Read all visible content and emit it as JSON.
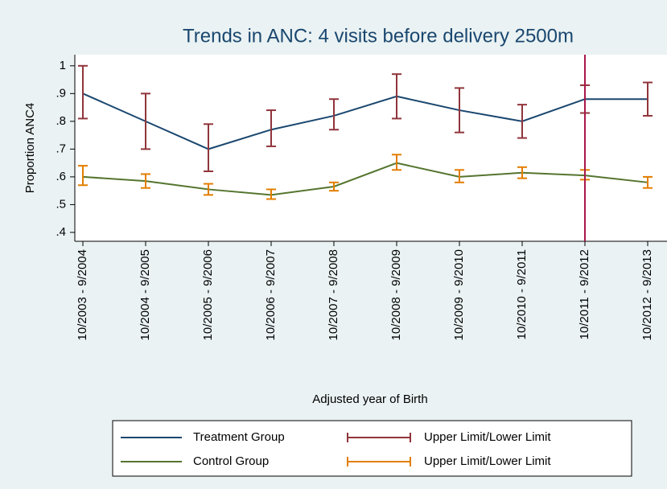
{
  "chart_data": {
    "type": "line",
    "title": "Trends in ANC: 4 visits before delivery 2500m",
    "x_label": "Adjusted year of Birth",
    "y_label": "Proportion ANC4",
    "categories": [
      "10/2003 - 9/2004",
      "10/2004 - 9/2005",
      "10/2005 - 9/2006",
      "10/2006 - 9/2007",
      "10/2007 - 9/2008",
      "10/2008 - 9/2009",
      "10/2009 - 9/2010",
      "10/2010 - 9/2011",
      "10/2011 - 9/2012",
      "10/2012 - 9/2013"
    ],
    "series": [
      {
        "name": "Treatment Group",
        "color": "#1a476f",
        "values": [
          0.9,
          0.8,
          0.7,
          0.77,
          0.82,
          0.89,
          0.84,
          0.8,
          0.88,
          0.88
        ]
      },
      {
        "name": "Control Group",
        "color": "#55752f",
        "values": [
          0.6,
          0.585,
          0.555,
          0.535,
          0.565,
          0.65,
          0.6,
          0.615,
          0.605,
          0.58
        ]
      }
    ],
    "intervals": [
      {
        "name": "Upper Limit/Lower Limit",
        "color": "#90353b",
        "upper": [
          1.0,
          0.9,
          0.79,
          0.84,
          0.88,
          0.97,
          0.92,
          0.86,
          0.93,
          0.94
        ],
        "lower": [
          0.81,
          0.7,
          0.62,
          0.71,
          0.77,
          0.81,
          0.76,
          0.74,
          0.83,
          0.82
        ]
      },
      {
        "name": "Upper Limit/Lower Limit",
        "color": "#e37e00",
        "upper": [
          0.64,
          0.61,
          0.575,
          0.555,
          0.58,
          0.68,
          0.625,
          0.635,
          0.625,
          0.6
        ],
        "lower": [
          0.57,
          0.56,
          0.535,
          0.52,
          0.55,
          0.625,
          0.58,
          0.595,
          0.59,
          0.56
        ]
      }
    ],
    "vline_at": 8,
    "vline_color": "#a8174a",
    "ylim": [
      0.368,
      1.04
    ],
    "yticks": [
      {
        "value": 0.4,
        "label": ".4"
      },
      {
        "value": 0.5,
        "label": ".5"
      },
      {
        "value": 0.6,
        "label": ".6"
      },
      {
        "value": 0.7,
        "label": ".7"
      },
      {
        "value": 0.8,
        "label": ".8"
      },
      {
        "value": 0.9,
        "label": ".9"
      },
      1
    ]
  }
}
